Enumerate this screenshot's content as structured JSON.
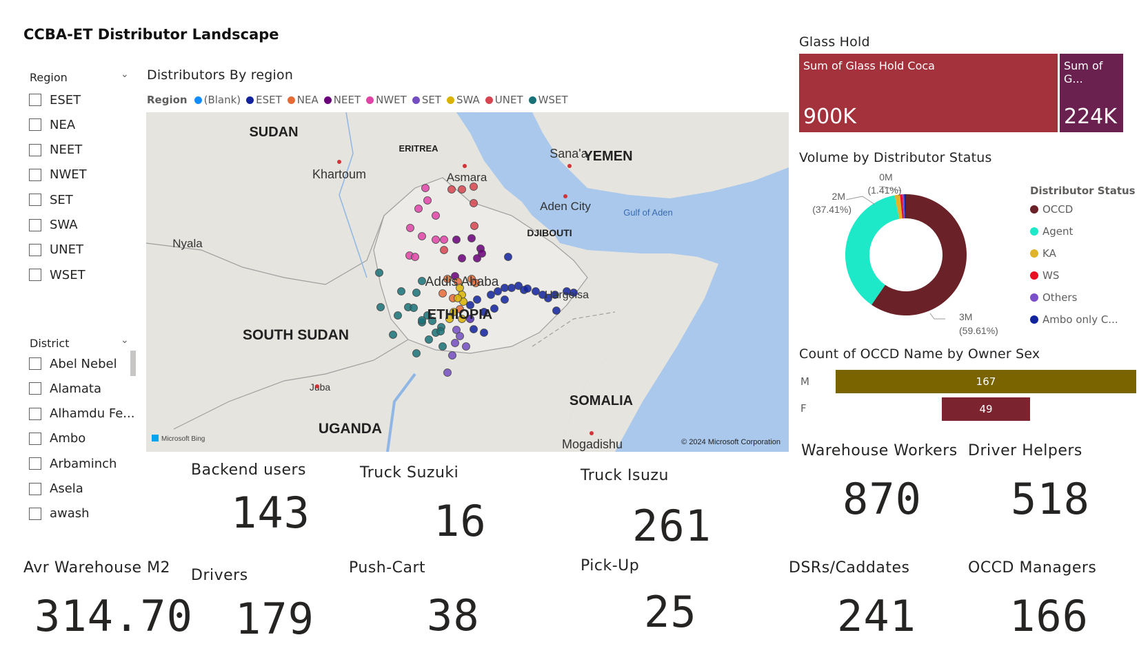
{
  "report": {
    "title": "CCBA-ET Distributor Landscape"
  },
  "region_slicer": {
    "header": "Region",
    "items": [
      "ESET",
      "NEA",
      "NEET",
      "NWET",
      "SET",
      "SWA",
      "UNET",
      "WSET"
    ]
  },
  "district_slicer": {
    "header": "District",
    "items": [
      "Abel Nebel",
      "Alamata",
      "Alhamdu Fe...",
      "Ambo",
      "Arbaminch",
      "Asela",
      "awash"
    ]
  },
  "map_visual": {
    "title": "Distributors By region",
    "legend_title": "Region",
    "legend": [
      {
        "label": "(Blank)",
        "color": "#118DFF"
      },
      {
        "label": "ESET",
        "color": "#12239E"
      },
      {
        "label": "NEA",
        "color": "#E66C37"
      },
      {
        "label": "NEET",
        "color": "#6B007B"
      },
      {
        "label": "NWET",
        "color": "#E044A7"
      },
      {
        "label": "SET",
        "color": "#744EC2"
      },
      {
        "label": "SWA",
        "color": "#D9B300"
      },
      {
        "label": "UNET",
        "color": "#D64550"
      },
      {
        "label": "WSET",
        "color": "#197278"
      }
    ],
    "place_labels": {
      "sudan": "SUDAN",
      "eritrea": "ERITREA",
      "yemen": "YEMEN",
      "sanaa": "Sana'a",
      "khartoum": "Khartoum",
      "asmara": "Asmara",
      "aden": "Aden City",
      "gulf": "Gulf of Aden",
      "djibouti": "DJIBOUTI",
      "nyala": "Nyala",
      "addis": "Addis Ababa",
      "hargeisa": "Hargeisa",
      "ethiopia": "ETHIOPIA",
      "south_sudan": "SOUTH SUDAN",
      "juba": "Juba",
      "somalia": "SOMALIA",
      "uganda": "UGANDA",
      "mogadishu": "Mogadishu"
    },
    "attribution_left": "Microsoft Bing",
    "attribution_right": "© 2024 Microsoft Corporation"
  },
  "glass_hold": {
    "title": "Glass Hold",
    "tiles": [
      {
        "label": "Sum of Glass Hold Coca",
        "value": "900K",
        "color": "#A4323D"
      },
      {
        "label": "Sum of G...",
        "value": "224K",
        "color": "#6B2150"
      }
    ]
  },
  "volume_status": {
    "title": "Volume by Distributor Status",
    "legend_title": "Distributor Status",
    "legend": [
      {
        "label": "OCCD",
        "color": "#6B2128"
      },
      {
        "label": "Agent",
        "color": "#1DE9C9"
      },
      {
        "label": "KA",
        "color": "#E0B42A"
      },
      {
        "label": "WS",
        "color": "#E81123"
      },
      {
        "label": "Others",
        "color": "#7B4FC9"
      },
      {
        "label": "Ambo only C...",
        "color": "#12239E"
      }
    ],
    "slices": [
      {
        "label": "OCCD",
        "pct": 59.61,
        "color": "#6B2128"
      },
      {
        "label": "Agent",
        "pct": 37.41,
        "color": "#1DE9C9"
      },
      {
        "label": "KA",
        "pct": 1.41,
        "color": "#E0B42A"
      },
      {
        "label": "WS",
        "pct": 0.6,
        "color": "#E81123"
      },
      {
        "label": "Others",
        "pct": 0.5,
        "color": "#7B4FC9"
      },
      {
        "label": "Ambo only C...",
        "pct": 0.47,
        "color": "#12239E"
      }
    ],
    "data_labels": {
      "occd_value": "3M",
      "occd_pct": "(59.61%)",
      "agent_value": "2M",
      "agent_pct": "(37.41%)",
      "ka_value": "0M",
      "ka_pct": "(1.41%)"
    }
  },
  "owner_sex": {
    "title": "Count of OCCD Name by Owner Sex",
    "bars": [
      {
        "label": "M",
        "value": 167,
        "color": "#7A6400"
      },
      {
        "label": "F",
        "value": 49,
        "color": "#7B2430"
      }
    ],
    "max": 167
  },
  "cards": {
    "backend_users": {
      "label": "Backend users",
      "value": "143"
    },
    "truck_suzuki": {
      "label": "Truck Suzuki",
      "value": "16"
    },
    "truck_isuzu": {
      "label": "Truck Isuzu",
      "value": "261"
    },
    "warehouse_workers": {
      "label": "Warehouse Workers",
      "value": "870"
    },
    "driver_helpers": {
      "label": "Driver Helpers",
      "value": "518"
    },
    "avr_warehouse": {
      "label": "Avr Warehouse M2",
      "value": "314.70"
    },
    "drivers": {
      "label": "Drivers",
      "value": "179"
    },
    "push_cart": {
      "label": "Push-Cart",
      "value": "38"
    },
    "pick_up": {
      "label": "Pick-Up",
      "value": "25"
    },
    "dsrs": {
      "label": "DSRs/Caddates",
      "value": "241"
    },
    "occd_managers": {
      "label": "OCCD Managers",
      "value": "166"
    }
  }
}
